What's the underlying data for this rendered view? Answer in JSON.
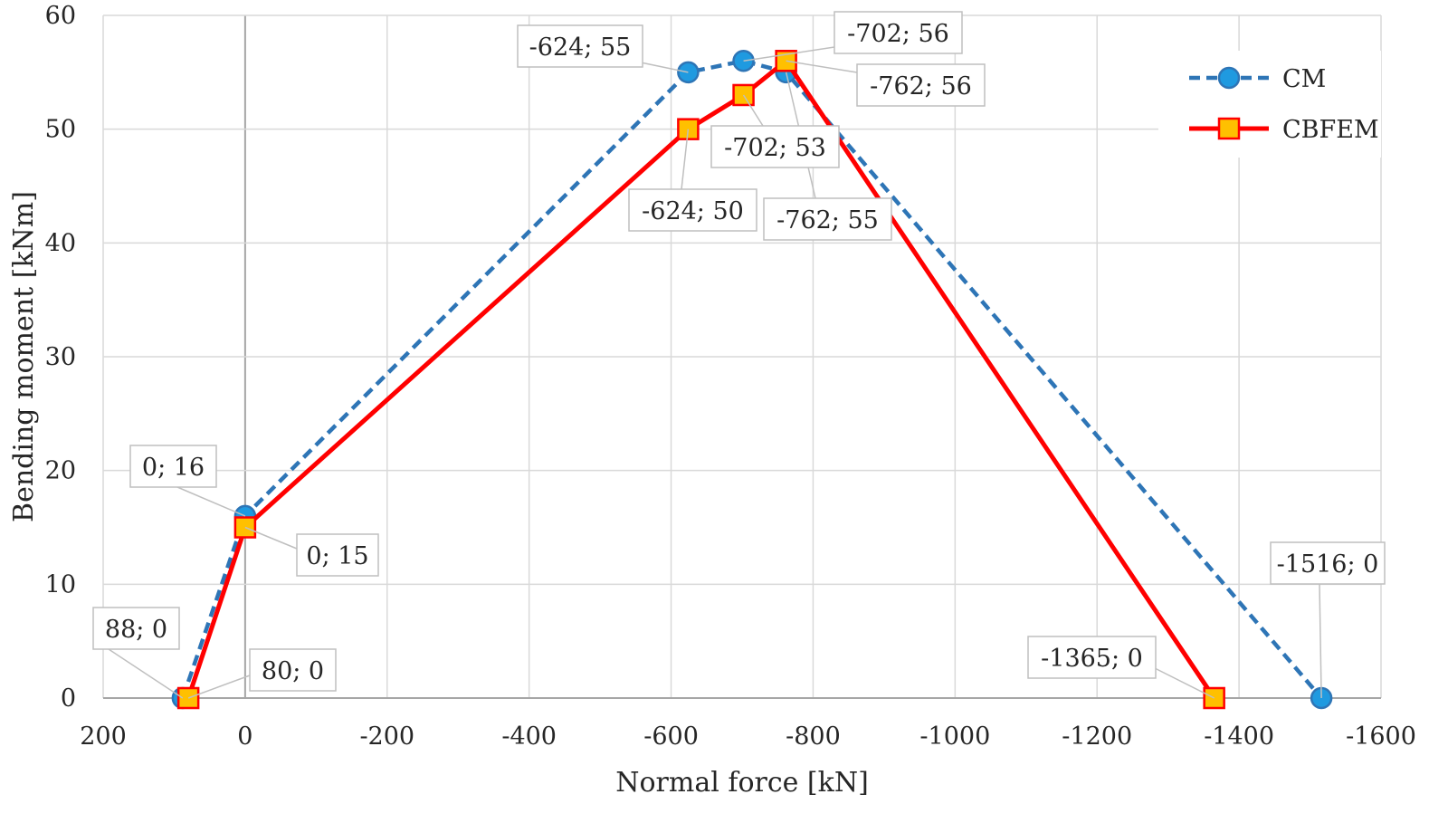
{
  "chart_data": {
    "type": "line",
    "title": "",
    "xlabel": "Normal force [kN]",
    "ylabel": "Bending moment [kNm]",
    "xlim": [
      200,
      -1600
    ],
    "ylim": [
      0,
      60
    ],
    "x_ticks": [
      200,
      0,
      -200,
      -400,
      -600,
      -800,
      -1000,
      -1200,
      -1400,
      -1600
    ],
    "x_tick_labels": [
      "200",
      "0",
      "-200",
      "-400",
      "-600",
      "-800",
      "-1000",
      "-1200",
      "-1400",
      "-1600"
    ],
    "y_ticks": [
      0,
      10,
      20,
      30,
      40,
      50,
      60
    ],
    "y_tick_labels": [
      "0",
      "10",
      "20",
      "30",
      "40",
      "50",
      "60"
    ],
    "grid": true,
    "legend_position": "right",
    "series": [
      {
        "name": "CM",
        "color": "#2e75b6",
        "marker_color": "#1f9ae0",
        "style": "dashed",
        "marker": "circle",
        "x": [
          88,
          0,
          -624,
          -702,
          -762,
          -1516
        ],
        "y": [
          0,
          16,
          55,
          56,
          55,
          0
        ],
        "labels": [
          "88; 0",
          "0; 16",
          "-624; 55",
          "-702; 56",
          "-762; 55",
          "-1516; 0"
        ]
      },
      {
        "name": "CBFEM",
        "color": "#ff0000",
        "marker_color": "#ffc000",
        "style": "solid",
        "marker": "square",
        "x": [
          80,
          0,
          -624,
          -702,
          -762,
          -1365
        ],
        "y": [
          0,
          15,
          50,
          53,
          56,
          0
        ],
        "labels": [
          "80; 0",
          "0; 15",
          "-624; 50",
          "-702; 53",
          "-762; 56",
          "-1365; 0"
        ]
      }
    ]
  }
}
